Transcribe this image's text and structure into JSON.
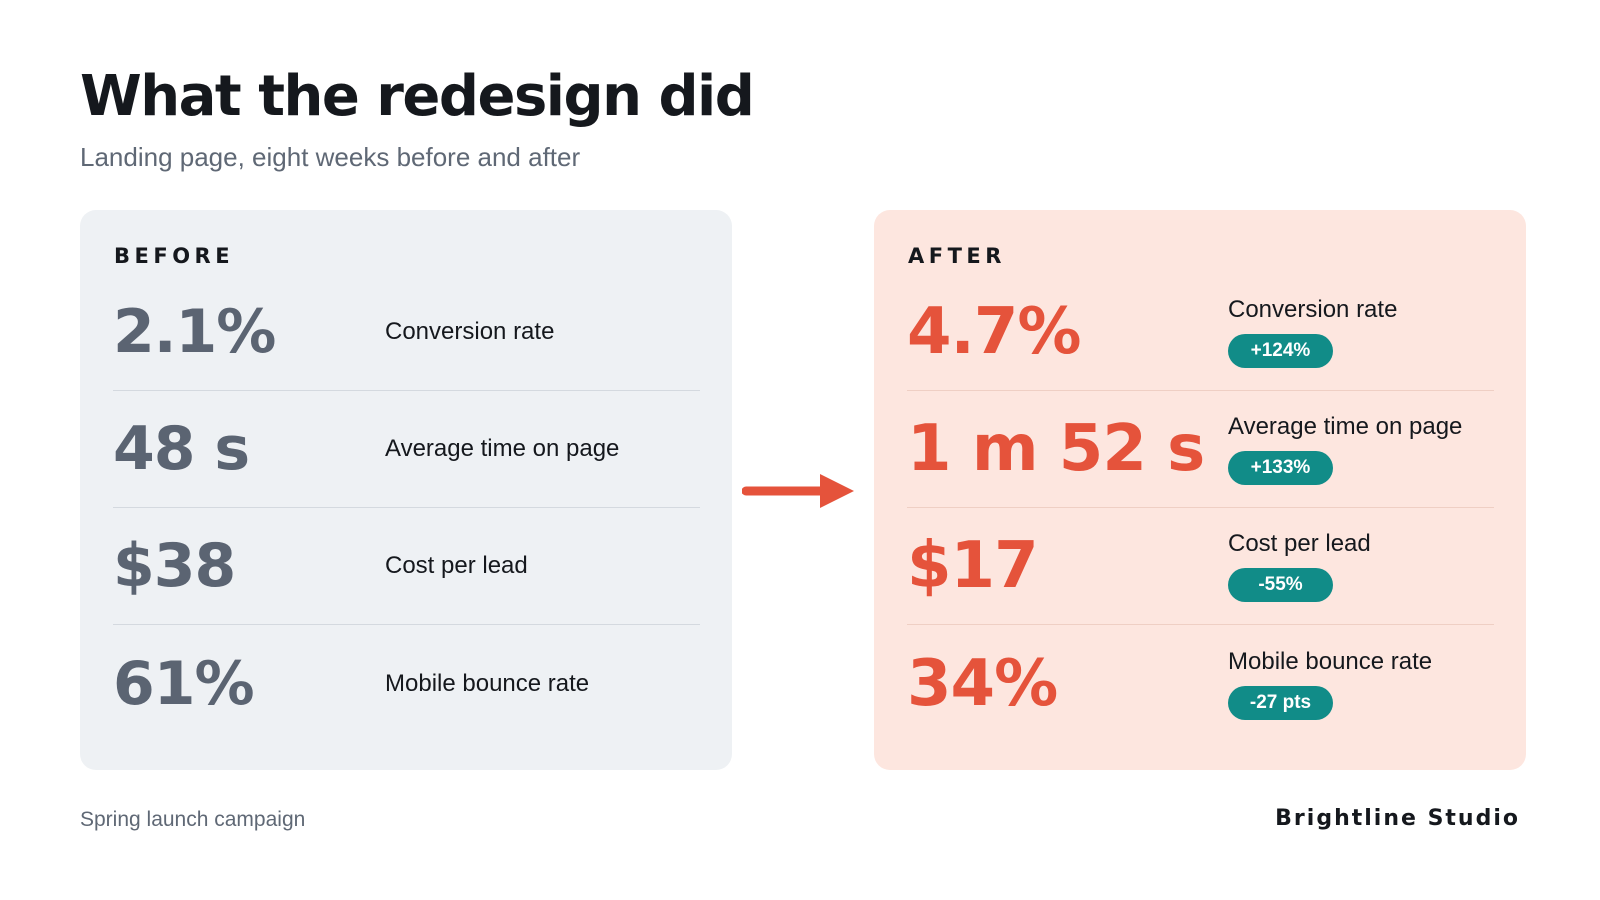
{
  "header": {
    "title": "What the redesign did",
    "subtitle": "Landing page, eight weeks before and after"
  },
  "before": {
    "label": "BEFORE",
    "rows": [
      {
        "value": "2.1%",
        "label": "Conversion rate"
      },
      {
        "value": "48 s",
        "label": "Average time on page"
      },
      {
        "value": "$38",
        "label": "Cost per lead"
      },
      {
        "value": "61%",
        "label": "Mobile bounce rate"
      }
    ]
  },
  "after": {
    "label": "AFTER",
    "rows": [
      {
        "value": "4.7%",
        "label": "Conversion rate",
        "change": "+124%"
      },
      {
        "value": "1 m 52 s",
        "label": "Average time on page",
        "change": "+133%"
      },
      {
        "value": "$17",
        "label": "Cost per lead",
        "change": "-55%"
      },
      {
        "value": "34%",
        "label": "Mobile bounce rate",
        "change": "-27 pts"
      }
    ]
  },
  "arrow_icon": "arrow-right-icon",
  "footer": {
    "campaign": "Spring launch campaign",
    "brand": "Brightline Studio"
  },
  "colors": {
    "accent": "#e5533b",
    "badge": "#118c88",
    "before_panel": "#eef1f4",
    "after_panel": "#fde6df"
  }
}
